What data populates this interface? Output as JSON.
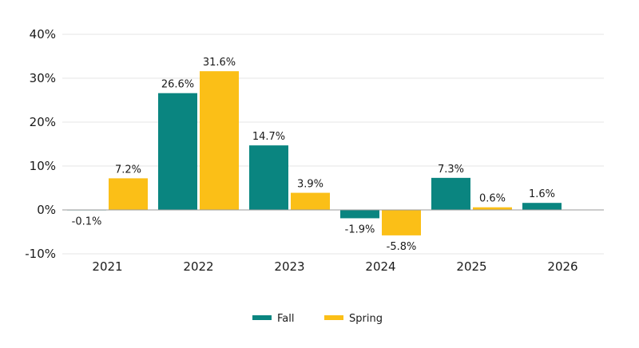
{
  "chart_data": {
    "type": "bar",
    "categories": [
      "2021",
      "2022",
      "2023",
      "2024",
      "2025",
      "2026"
    ],
    "series": [
      {
        "name": "Fall",
        "color": "#0a8580",
        "values": [
          -0.1,
          26.6,
          14.7,
          -1.9,
          7.3,
          1.6
        ],
        "labels": [
          "-0.1%",
          "26.6%",
          "14.7%",
          "-1.9%",
          "7.3%",
          "1.6%"
        ]
      },
      {
        "name": "Spring",
        "color": "#fbbf17",
        "values": [
          7.2,
          31.6,
          3.9,
          -5.8,
          0.6,
          null
        ],
        "labels": [
          "7.2%",
          "31.6%",
          "3.9%",
          "-5.8%",
          "0.6%",
          null
        ]
      }
    ],
    "yticks": [
      -10,
      0,
      10,
      20,
      30,
      40
    ],
    "ytick_labels": [
      "-10%",
      "0%",
      "10%",
      "20%",
      "30%",
      "40%"
    ],
    "ylim": [
      -10,
      40
    ],
    "grid": true,
    "legend_position": "bottom-center",
    "title": "",
    "xlabel": "",
    "ylabel": ""
  }
}
